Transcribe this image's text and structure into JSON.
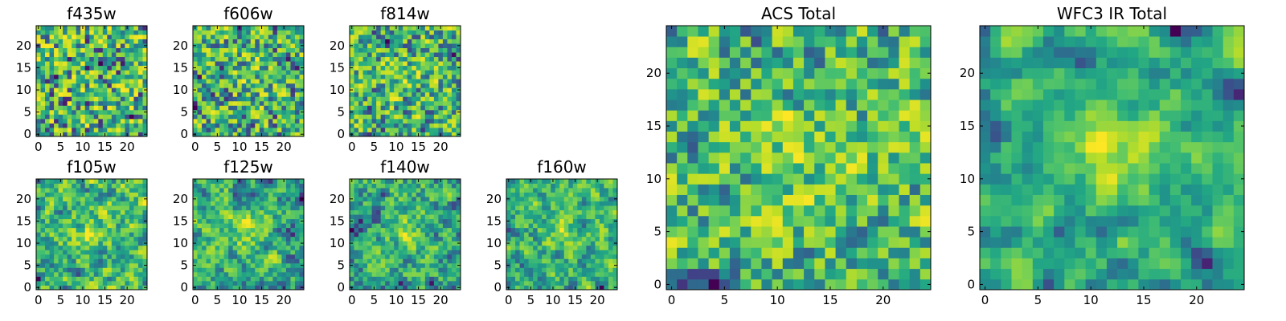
{
  "chart_data": [
    {
      "type": "heatmap",
      "title": "f435w",
      "grid_size": 25,
      "xticks": [
        "0",
        "5",
        "10",
        "15",
        "20"
      ],
      "yticks": [
        "0",
        "5",
        "10",
        "15",
        "20"
      ],
      "xlim": [
        -0.5,
        24.5
      ],
      "ylim": [
        -0.5,
        24.5
      ],
      "colormap": "viridis",
      "seed": 11,
      "smooth": 0
    },
    {
      "type": "heatmap",
      "title": "f606w",
      "grid_size": 25,
      "xticks": [
        "0",
        "5",
        "10",
        "15",
        "20"
      ],
      "yticks": [
        "0",
        "5",
        "10",
        "15",
        "20"
      ],
      "xlim": [
        -0.5,
        24.5
      ],
      "ylim": [
        -0.5,
        24.5
      ],
      "colormap": "viridis",
      "seed": 23,
      "smooth": 0.3
    },
    {
      "type": "heatmap",
      "title": "f814w",
      "grid_size": 25,
      "xticks": [
        "0",
        "5",
        "10",
        "15",
        "20"
      ],
      "yticks": [
        "0",
        "5",
        "10",
        "15",
        "20"
      ],
      "xlim": [
        -0.5,
        24.5
      ],
      "ylim": [
        -0.5,
        24.5
      ],
      "colormap": "viridis",
      "seed": 37,
      "smooth": 0.3
    },
    {
      "type": "heatmap",
      "title": "f105w",
      "grid_size": 25,
      "xticks": [
        "0",
        "5",
        "10",
        "15",
        "20"
      ],
      "yticks": [
        "0",
        "5",
        "10",
        "15",
        "20"
      ],
      "xlim": [
        -0.5,
        24.5
      ],
      "ylim": [
        -0.5,
        24.5
      ],
      "colormap": "viridis",
      "seed": 41,
      "smooth": 0.6
    },
    {
      "type": "heatmap",
      "title": "f125w",
      "grid_size": 25,
      "xticks": [
        "0",
        "5",
        "10",
        "15",
        "20"
      ],
      "yticks": [
        "0",
        "5",
        "10",
        "15",
        "20"
      ],
      "xlim": [
        -0.5,
        24.5
      ],
      "ylim": [
        -0.5,
        24.5
      ],
      "colormap": "viridis",
      "seed": 53,
      "smooth": 0.6
    },
    {
      "type": "heatmap",
      "title": "f140w",
      "grid_size": 25,
      "xticks": [
        "0",
        "5",
        "10",
        "15",
        "20"
      ],
      "yticks": [
        "0",
        "5",
        "10",
        "15",
        "20"
      ],
      "xlim": [
        -0.5,
        24.5
      ],
      "ylim": [
        -0.5,
        24.5
      ],
      "colormap": "viridis",
      "seed": 67,
      "smooth": 0.6
    },
    {
      "type": "heatmap",
      "title": "f160w",
      "grid_size": 25,
      "xticks": [
        "0",
        "5",
        "10",
        "15",
        "20"
      ],
      "yticks": [
        "0",
        "5",
        "10",
        "15",
        "20"
      ],
      "xlim": [
        -0.5,
        24.5
      ],
      "ylim": [
        -0.5,
        24.5
      ],
      "colormap": "viridis",
      "seed": 79,
      "smooth": 0.6
    },
    {
      "type": "heatmap",
      "title": "ACS Total",
      "grid_size": 25,
      "xticks": [
        "0",
        "5",
        "10",
        "15",
        "20"
      ],
      "yticks": [
        "0",
        "5",
        "10",
        "15",
        "20"
      ],
      "xlim": [
        -0.5,
        24.5
      ],
      "ylim": [
        -0.5,
        24.5
      ],
      "colormap": "viridis",
      "seed": 97,
      "smooth": 0.4
    },
    {
      "type": "heatmap",
      "title": "WFC3 IR Total",
      "grid_size": 25,
      "xticks": [
        "0",
        "5",
        "10",
        "15",
        "20"
      ],
      "yticks": [
        "0",
        "5",
        "10",
        "15",
        "20"
      ],
      "xlim": [
        -0.5,
        24.5
      ],
      "ylim": [
        -0.5,
        24.5
      ],
      "colormap": "viridis",
      "seed": 113,
      "smooth": 0.8
    }
  ]
}
